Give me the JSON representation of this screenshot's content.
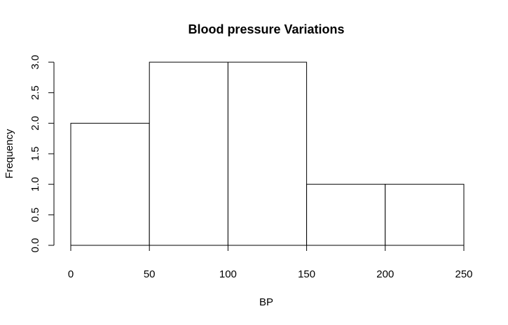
{
  "chart_data": {
    "type": "bar",
    "title": "Blood pressure Variations",
    "xlabel": "BP",
    "ylabel": "Frequency",
    "bins": [
      {
        "start": 0,
        "end": 50,
        "value": 2
      },
      {
        "start": 50,
        "end": 100,
        "value": 3
      },
      {
        "start": 100,
        "end": 150,
        "value": 3
      },
      {
        "start": 150,
        "end": 200,
        "value": 1
      },
      {
        "start": 200,
        "end": 250,
        "value": 1
      }
    ],
    "x_ticks": [
      0,
      50,
      100,
      150,
      200,
      250
    ],
    "x_tick_labels": [
      "0",
      "50",
      "100",
      "150",
      "200",
      "250"
    ],
    "y_ticks": [
      0,
      0.5,
      1,
      1.5,
      2,
      2.5,
      3
    ],
    "y_tick_labels": [
      "0.0",
      "0.5",
      "1.0",
      "1.5",
      "2.0",
      "2.5",
      "3.0"
    ],
    "xlim": [
      0,
      250
    ],
    "ylim": [
      0,
      3
    ],
    "grid": false,
    "legend": "none",
    "bar_fill": "#ffffff",
    "bar_stroke": "#000000"
  }
}
